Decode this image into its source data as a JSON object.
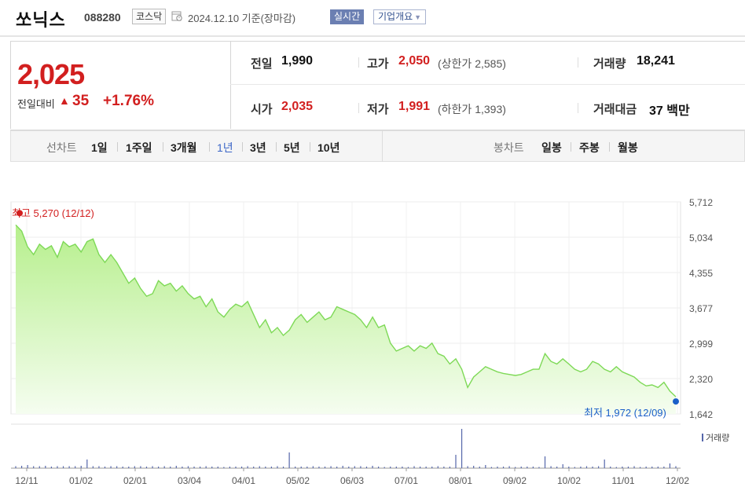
{
  "header": {
    "name": "쏘닉스",
    "code": "088280",
    "market": "코스닥",
    "date_text": "2024.12.10 기준(장마감)",
    "realtime_label": "실시간",
    "profile_label": "기업개요"
  },
  "quote": {
    "price": "2,025",
    "change_label": "전일대비",
    "change_amount": "35",
    "change_percent": "+1.76%",
    "prev_close_label": "전일",
    "prev_close": "1,990",
    "open_label": "시가",
    "open": "2,035",
    "high_label": "고가",
    "high": "2,050",
    "upper_limit": "(상한가 2,585)",
    "low_label": "저가",
    "low": "1,991",
    "lower_limit": "(하한가 1,393)",
    "volume_label": "거래량",
    "volume": "18,241",
    "value_label": "거래대금",
    "value": "37 백만"
  },
  "tabs": {
    "line_label": "선차트",
    "line_periods": [
      "1일",
      "1주일",
      "3개월",
      "1년",
      "3년",
      "5년",
      "10년"
    ],
    "active_period": "1년",
    "candle_label": "봉차트",
    "candle_periods": [
      "일봉",
      "주봉",
      "월봉"
    ]
  },
  "colors": {
    "up": "#d21f1f",
    "down": "#1a5fc8",
    "line": "#7ed957",
    "fill_top": "#b8f08f",
    "active_tab": "#3b66c7"
  },
  "chart_data": {
    "type": "area",
    "title": "",
    "y_ticks": [
      "5,712",
      "5,034",
      "4,355",
      "3,677",
      "2,999",
      "2,320",
      "1,642"
    ],
    "ylim": [
      1642,
      5712
    ],
    "x_ticks": [
      "12/11",
      "01/02",
      "02/01",
      "03/04",
      "04/01",
      "05/02",
      "06/03",
      "07/01",
      "08/01",
      "09/02",
      "10/02",
      "11/01",
      "12/02"
    ],
    "high_annotation": "최고 5,270 (12/12)",
    "low_annotation": "최저 1,972 (12/09)",
    "volume_label": "거래량",
    "series": [
      {
        "name": "",
        "values": [
          5270,
          5150,
          4850,
          4700,
          4900,
          4800,
          4870,
          4650,
          4950,
          4850,
          4900,
          4750,
          4950,
          5000,
          4700,
          4550,
          4700,
          4550,
          4350,
          4150,
          4250,
          4050,
          3900,
          3950,
          4200,
          4100,
          4150,
          4000,
          4100,
          3950,
          3850,
          3900,
          3700,
          3850,
          3600,
          3500,
          3650,
          3750,
          3700,
          3800,
          3550,
          3300,
          3450,
          3200,
          3300,
          3150,
          3250,
          3450,
          3550,
          3400,
          3500,
          3600,
          3450,
          3500,
          3700,
          3650,
          3600,
          3550,
          3450,
          3300,
          3500,
          3300,
          3350,
          3000,
          2850,
          2900,
          2950,
          2850,
          2950,
          2900,
          3000,
          2800,
          2750,
          2600,
          2700,
          2500,
          2150,
          2350,
          2450,
          2550,
          2500,
          2450,
          2420,
          2400,
          2380,
          2400,
          2450,
          2500,
          2500,
          2800,
          2650,
          2600,
          2700,
          2600,
          2500,
          2450,
          2500,
          2650,
          2600,
          2500,
          2450,
          2550,
          2450,
          2400,
          2350,
          2250,
          2180,
          2200,
          2150,
          2250,
          2080,
          1972
        ]
      },
      {
        "name": "거래량",
        "values": [
          0.05,
          0.06,
          0.08,
          0.05,
          0.05,
          0.06,
          0.04,
          0.05,
          0.05,
          0.05,
          0.05,
          0.06,
          0.22,
          0.05,
          0.05,
          0.04,
          0.05,
          0.05,
          0.04,
          0.04,
          0.05,
          0.05,
          0.04,
          0.05,
          0.04,
          0.05,
          0.04,
          0.06,
          0.04,
          0.05,
          0.04,
          0.04,
          0.05,
          0.04,
          0.04,
          0.03,
          0.04,
          0.04,
          0.04,
          0.05,
          0.04,
          0.05,
          0.04,
          0.04,
          0.05,
          0.04,
          0.4,
          0.04,
          0.04,
          0.04,
          0.05,
          0.04,
          0.04,
          0.05,
          0.04,
          0.06,
          0.04,
          0.05,
          0.05,
          0.04,
          0.06,
          0.04,
          0.03,
          0.04,
          0.04,
          0.04,
          0.03,
          0.05,
          0.04,
          0.04,
          0.04,
          0.05,
          0.04,
          0.04,
          0.34,
          1.0,
          0.05,
          0.06,
          0.04,
          0.08,
          0.03,
          0.04,
          0.04,
          0.05,
          0.03,
          0.04,
          0.04,
          0.04,
          0.03,
          0.3,
          0.05,
          0.04,
          0.1,
          0.04,
          0.03,
          0.04,
          0.05,
          0.04,
          0.05,
          0.22,
          0.04,
          0.03,
          0.04,
          0.04,
          0.05,
          0.03,
          0.04,
          0.04,
          0.04,
          0.04,
          0.12,
          0.05
        ]
      }
    ]
  }
}
